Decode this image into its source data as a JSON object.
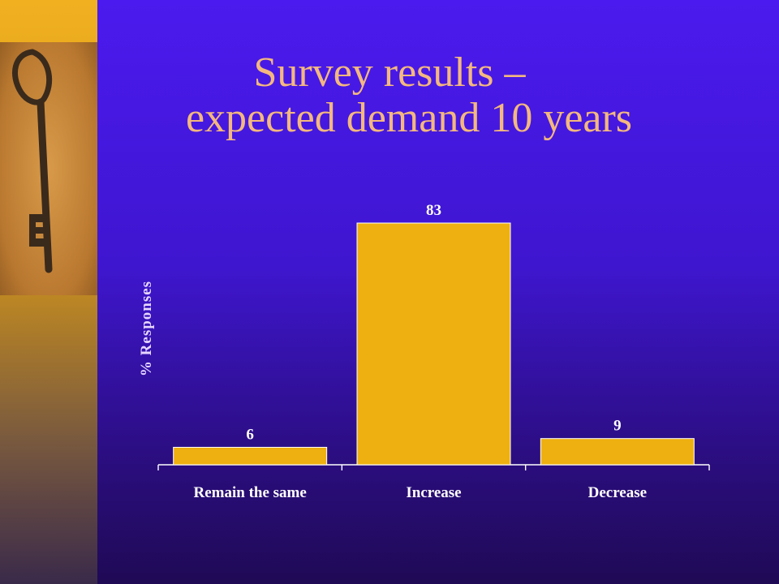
{
  "slide": {
    "title_line1": "Survey results –",
    "title_line2": "expected demand 10 years",
    "sidebar_image": "key-photo",
    "accent_color": "#f4b87e",
    "background_color": "#4b1aee"
  },
  "chart_data": {
    "type": "bar",
    "title": "",
    "xlabel": "",
    "ylabel": "% Responses",
    "categories": [
      "Remain the same",
      "Increase",
      "Decrease"
    ],
    "values": [
      6,
      83,
      9
    ],
    "ylim": [
      0,
      90
    ],
    "grid": false,
    "legend": "none",
    "bar_color": "#eeb010"
  }
}
